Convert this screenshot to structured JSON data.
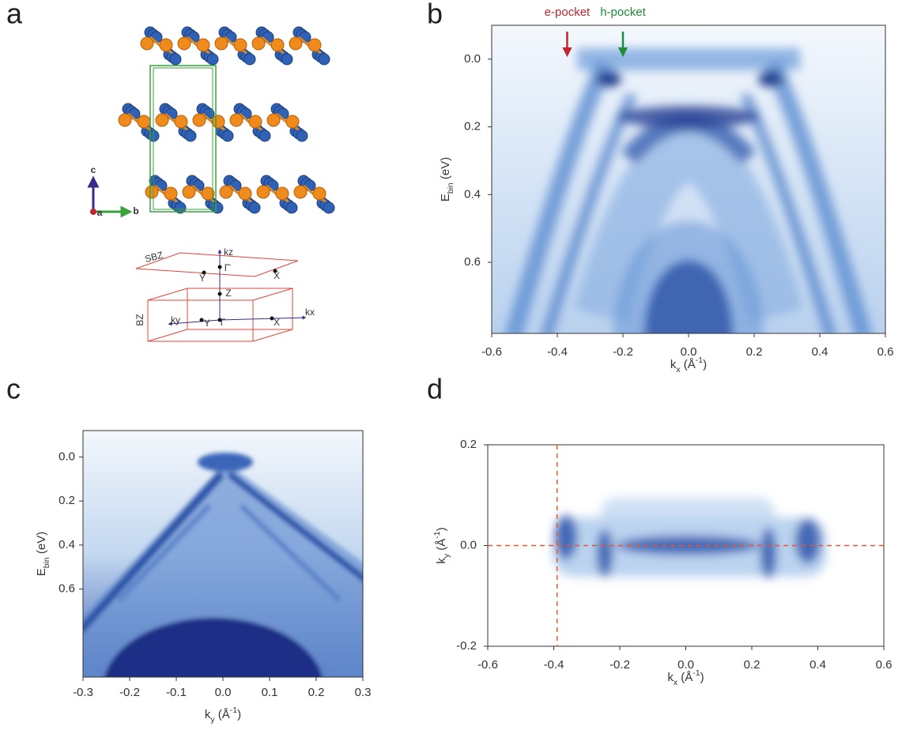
{
  "panels": [
    {
      "label": "a",
      "axes_labels": [
        "c",
        "a",
        "b"
      ],
      "bz_labels": [
        "SBZ",
        "kz",
        "Γ̄",
        "Ȳ",
        "X̄",
        "Z",
        "BZ",
        "ky",
        "Y",
        "Γ",
        "X",
        "kx"
      ]
    },
    {
      "label": "b",
      "annotations": [
        {
          "text": "e-pocket",
          "kx": -0.37,
          "color": "#c0272d"
        },
        {
          "text": "h-pocket",
          "kx": -0.2,
          "color": "#1e8c3a"
        }
      ],
      "xlabel": {
        "symbol": "k",
        "sub": "x",
        "unit": " (Å",
        "sup": "-1",
        "end": ")"
      },
      "ylabel": {
        "symbol": "E",
        "sub": "bin",
        "unit": " (eV)"
      },
      "xlim": [
        -0.6,
        0.6
      ],
      "ylim": [
        -0.1,
        0.81
      ],
      "xticks": [
        -0.6,
        -0.4,
        -0.2,
        {
          "value": 0,
          "label": "0.0"
        },
        0.2,
        0.4,
        0.6
      ],
      "yticks": [
        {
          "value": 0,
          "label": "0.0"
        },
        0.2,
        0.4,
        0.6
      ]
    },
    {
      "label": "c",
      "xlabel": {
        "symbol": "k",
        "sub": "y",
        "unit": " (Å",
        "sup": "-1",
        "end": ")"
      },
      "ylabel": {
        "symbol": "E",
        "sub": "bin",
        "unit": " (eV)"
      },
      "xlim": [
        -0.3,
        0.3
      ],
      "ylim": [
        -0.12,
        1.0
      ],
      "xticks": [
        -0.3,
        -0.2,
        -0.1,
        {
          "value": 0,
          "label": "0.0"
        },
        0.1,
        0.2,
        0.3
      ],
      "yticks": [
        {
          "value": 0,
          "label": "0.0"
        },
        0.2,
        0.4,
        0.6
      ]
    },
    {
      "label": "d",
      "xlabel": {
        "symbol": "k",
        "sub": "x",
        "unit": " (Å",
        "sup": "-1",
        "end": ")"
      },
      "ylabel": {
        "symbol": "k",
        "sub": "y",
        "unit": " (Å",
        "sup": "-1",
        "end": ")"
      },
      "xlim": [
        -0.6,
        0.6
      ],
      "ylim": [
        -0.2,
        0.2
      ],
      "xticks": [
        -0.6,
        -0.4,
        -0.2,
        {
          "value": 0,
          "label": "0.0"
        },
        0.2,
        0.4,
        0.6
      ],
      "yticks": [
        -0.2,
        {
          "value": 0,
          "label": "0.0"
        },
        0.2
      ],
      "guide_lines": {
        "kx": -0.39,
        "ky": 0
      }
    }
  ]
}
